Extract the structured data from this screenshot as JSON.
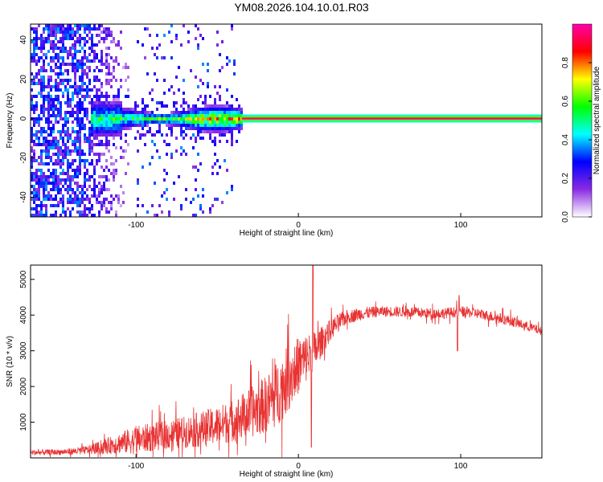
{
  "figure": {
    "title": "YM08.2026.104.10.01.R03"
  },
  "chart_data": [
    {
      "type": "heatmap",
      "title": "YM08.2026.104.10.01.R03",
      "xlabel": "Height of straight line (km)",
      "ylabel": "Frequency (Hz)",
      "xlim": [
        -165,
        150
      ],
      "ylim": [
        -50,
        48
      ],
      "x_ticks": [
        -100,
        0,
        100
      ],
      "x_tick_labels": [
        "-100",
        "0",
        "100"
      ],
      "y_ticks": [
        -40,
        -20,
        0,
        20,
        40
      ],
      "y_tick_labels": [
        "-40",
        "-20",
        "0",
        "20",
        "40"
      ],
      "colorbar": {
        "label": "Normalized spectral amplitude",
        "range": [
          0,
          1
        ],
        "ticks": [
          0.0,
          0.2,
          0.4,
          0.6,
          0.8
        ],
        "tick_labels": [
          "0.0",
          "0.2",
          "0.4",
          "0.6",
          "0.8"
        ],
        "colors": [
          "#ffffff",
          "#8a2be2",
          "#0000ff",
          "#00ffff",
          "#00ff00",
          "#ffff00",
          "#ff0000",
          "#ff00aa"
        ]
      },
      "band": {
        "frequency": 0,
        "from_height": -35,
        "to_height": 150,
        "amplitude": 0.95
      },
      "regions": [
        {
          "name": "noise",
          "from_height": -165,
          "to_height": -105,
          "amplitude": 0.3
        },
        {
          "name": "onset",
          "from_height": -128,
          "to_height": -110,
          "amplitude": 0.45
        },
        {
          "name": "signal",
          "from_height": -110,
          "to_height": -35,
          "amplitude": 0.7
        }
      ]
    },
    {
      "type": "line",
      "xlabel": "Height of straight line (km)",
      "ylabel": "SNR (10 * v/v)",
      "xlim": [
        -165,
        150
      ],
      "ylim": [
        0,
        5400
      ],
      "x_ticks": [
        -100,
        0,
        100
      ],
      "x_tick_labels": [
        "-100",
        "0",
        "100"
      ],
      "y_ticks": [
        1000,
        2000,
        3000,
        4000,
        5000
      ],
      "y_tick_labels": [
        "1000",
        "2000",
        "3000",
        "4000",
        "5000"
      ],
      "color": "#e83333",
      "series": [
        {
          "name": "SNR envelope",
          "x": [
            -165,
            -150,
            -140,
            -130,
            -120,
            -110,
            -100,
            -90,
            -80,
            -70,
            -60,
            -50,
            -40,
            -30,
            -20,
            -15,
            -10,
            -5,
            0,
            5,
            10,
            15,
            20,
            25,
            30,
            40,
            50,
            60,
            70,
            80,
            90,
            100,
            110,
            120,
            130,
            140,
            150
          ],
          "y": [
            150,
            160,
            180,
            220,
            300,
            420,
            500,
            580,
            650,
            720,
            800,
            900,
            1050,
            1250,
            1500,
            1700,
            2000,
            2300,
            2600,
            2800,
            3000,
            3300,
            3600,
            3800,
            3950,
            4050,
            4100,
            4100,
            4080,
            4050,
            4050,
            4100,
            4050,
            3950,
            3850,
            3700,
            3550
          ],
          "noise": [
            80,
            80,
            90,
            120,
            200,
            300,
            400,
            400,
            420,
            450,
            500,
            550,
            600,
            700,
            800,
            900,
            950,
            900,
            800,
            700,
            550,
            400,
            300,
            250,
            200,
            180,
            150,
            150,
            150,
            150,
            150,
            150,
            150,
            150,
            150,
            130,
            120
          ]
        }
      ],
      "spikes": [
        {
          "x": 9,
          "y": 5400
        },
        {
          "x": 8,
          "y": 300
        },
        {
          "x": 99,
          "y": 4550
        },
        {
          "x": 98,
          "y": 3000
        }
      ]
    }
  ]
}
